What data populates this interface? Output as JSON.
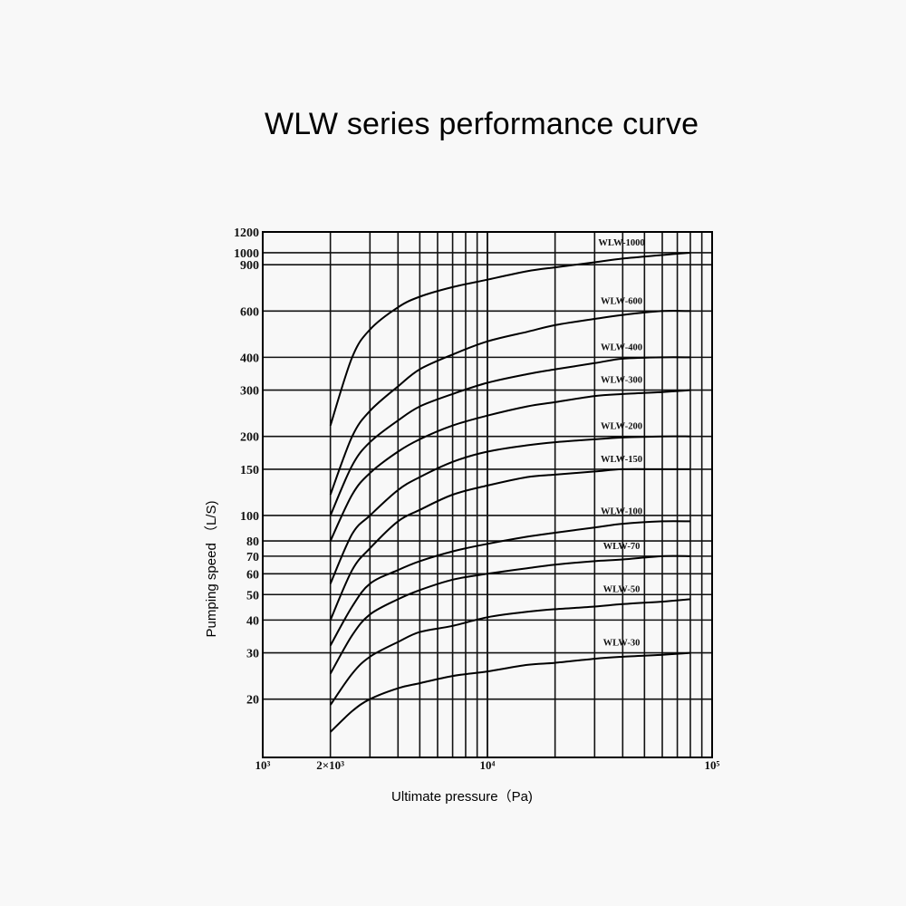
{
  "chart_data": {
    "type": "line",
    "title": "WLW series performance curve",
    "xlabel": "Ultimate pressure（Pa)",
    "ylabel": "Pumping speed （L/S)",
    "x_scale": "log",
    "y_scale": "log",
    "xlim": [
      1000,
      100000
    ],
    "ylim": [
      12,
      1200
    ],
    "grid": true,
    "x_tick_labels": [
      {
        "value": 1000,
        "label": "10³"
      },
      {
        "value": 2000,
        "label": "2×10³"
      },
      {
        "value": 10000,
        "label": "10⁴"
      },
      {
        "value": 100000,
        "label": "10⁵"
      }
    ],
    "y_tick_labels": [
      {
        "value": 1200,
        "label": "1200"
      },
      {
        "value": 1000,
        "label": "1000"
      },
      {
        "value": 900,
        "label": "900"
      },
      {
        "value": 600,
        "label": "600"
      },
      {
        "value": 400,
        "label": "400"
      },
      {
        "value": 300,
        "label": "300"
      },
      {
        "value": 200,
        "label": "200"
      },
      {
        "value": 150,
        "label": "150"
      },
      {
        "value": 100,
        "label": "100"
      },
      {
        "value": 80,
        "label": "80"
      },
      {
        "value": 70,
        "label": "70"
      },
      {
        "value": 60,
        "label": "60"
      },
      {
        "value": 50,
        "label": "50"
      },
      {
        "value": 40,
        "label": "40"
      },
      {
        "value": 30,
        "label": "30"
      },
      {
        "value": 20,
        "label": "20"
      }
    ],
    "series": [
      {
        "name": "WLW-1000",
        "x": [
          2000,
          2500,
          3000,
          4000,
          5000,
          7000,
          10000,
          15000,
          20000,
          30000,
          40000,
          60000,
          80000
        ],
        "y": [
          220,
          400,
          510,
          620,
          680,
          740,
          790,
          850,
          880,
          920,
          950,
          980,
          1000
        ]
      },
      {
        "name": "WLW-600",
        "x": [
          2000,
          2500,
          3000,
          4000,
          5000,
          7000,
          10000,
          15000,
          20000,
          30000,
          40000,
          60000,
          80000
        ],
        "y": [
          120,
          200,
          250,
          310,
          360,
          410,
          460,
          500,
          530,
          560,
          580,
          600,
          600
        ]
      },
      {
        "name": "WLW-400",
        "x": [
          2000,
          2500,
          3000,
          4000,
          5000,
          7000,
          10000,
          15000,
          20000,
          30000,
          40000,
          60000,
          80000
        ],
        "y": [
          100,
          155,
          190,
          230,
          260,
          290,
          320,
          345,
          360,
          380,
          395,
          400,
          400
        ]
      },
      {
        "name": "WLW-300",
        "x": [
          2000,
          2500,
          3000,
          4000,
          5000,
          7000,
          10000,
          15000,
          20000,
          30000,
          40000,
          60000,
          80000
        ],
        "y": [
          80,
          120,
          145,
          175,
          195,
          220,
          240,
          260,
          270,
          285,
          290,
          295,
          300
        ]
      },
      {
        "name": "WLW-200",
        "x": [
          2000,
          2500,
          3000,
          4000,
          5000,
          7000,
          10000,
          15000,
          20000,
          30000,
          40000,
          60000,
          80000
        ],
        "y": [
          55,
          85,
          100,
          125,
          140,
          160,
          175,
          185,
          190,
          195,
          198,
          200,
          200
        ]
      },
      {
        "name": "WLW-150",
        "x": [
          2000,
          2500,
          3000,
          4000,
          5000,
          7000,
          10000,
          15000,
          20000,
          30000,
          40000,
          60000,
          80000
        ],
        "y": [
          40,
          62,
          75,
          95,
          105,
          120,
          130,
          140,
          143,
          147,
          150,
          150,
          150
        ]
      },
      {
        "name": "WLW-100",
        "x": [
          2000,
          2500,
          3000,
          4000,
          5000,
          7000,
          10000,
          15000,
          20000,
          30000,
          40000,
          60000,
          80000
        ],
        "y": [
          32,
          45,
          55,
          62,
          67,
          73,
          78,
          83,
          86,
          90,
          93,
          95,
          95
        ]
      },
      {
        "name": "WLW-70",
        "x": [
          2000,
          2500,
          3000,
          4000,
          5000,
          7000,
          10000,
          15000,
          20000,
          30000,
          40000,
          60000,
          80000
        ],
        "y": [
          25,
          35,
          42,
          48,
          52,
          57,
          60,
          63,
          65,
          67,
          68,
          70,
          70
        ]
      },
      {
        "name": "WLW-50",
        "x": [
          2000,
          2500,
          3000,
          4000,
          5000,
          7000,
          10000,
          15000,
          20000,
          30000,
          40000,
          60000,
          80000
        ],
        "y": [
          19,
          25,
          29,
          33,
          36,
          38,
          41,
          43,
          44,
          45,
          46,
          47,
          48
        ]
      },
      {
        "name": "WLW-30",
        "x": [
          2000,
          2500,
          3000,
          4000,
          5000,
          7000,
          10000,
          15000,
          20000,
          30000,
          40000,
          60000,
          80000
        ],
        "y": [
          15,
          18,
          20,
          22,
          23,
          24.5,
          25.5,
          27,
          27.5,
          28.5,
          29,
          29.5,
          30
        ]
      }
    ]
  }
}
